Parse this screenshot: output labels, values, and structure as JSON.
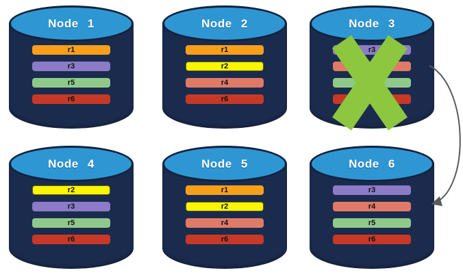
{
  "colors": {
    "background": "#ffffff",
    "cylinder_body": "#1B2B4E",
    "cylinder_top": "#2E97D3",
    "cylinder_outline": "#12233E",
    "title_text": "#ffffff",
    "bar_label_text": "#111111",
    "failure_x": "#8DC63F",
    "arrow": "#595959",
    "replica_palette": {
      "r1": "#F8A01A",
      "r2": "#FAF405",
      "r3": "#8C7BC6",
      "r4": "#DF7A66",
      "r5": "#8FC98A",
      "r6": "#C63926"
    }
  },
  "nodes": [
    {
      "id": "node-1",
      "title": "Node 1",
      "failed": false,
      "replicas": [
        {
          "label": "r1",
          "color": "r1"
        },
        {
          "label": "r3",
          "color": "r3"
        },
        {
          "label": "r5",
          "color": "r5"
        },
        {
          "label": "r6",
          "color": "r6"
        }
      ]
    },
    {
      "id": "node-2",
      "title": "Node 2",
      "failed": false,
      "replicas": [
        {
          "label": "r1",
          "color": "r1"
        },
        {
          "label": "r2",
          "color": "r2"
        },
        {
          "label": "r4",
          "color": "r4"
        },
        {
          "label": "r6",
          "color": "r6"
        }
      ]
    },
    {
      "id": "node-3",
      "title": "Node 3",
      "failed": true,
      "replicas": [
        {
          "label": "r3",
          "color": "r3"
        },
        {
          "label": "",
          "color": "r4"
        },
        {
          "label": "",
          "color": "r5"
        },
        {
          "label": "",
          "color": "r6"
        }
      ]
    },
    {
      "id": "node-4",
      "title": "Node 4",
      "failed": false,
      "replicas": [
        {
          "label": "r2",
          "color": "r2"
        },
        {
          "label": "r3",
          "color": "r3"
        },
        {
          "label": "r5",
          "color": "r5"
        },
        {
          "label": "r6",
          "color": "r6"
        }
      ]
    },
    {
      "id": "node-5",
      "title": "Node 5",
      "failed": false,
      "replicas": [
        {
          "label": "r1",
          "color": "r1"
        },
        {
          "label": "r2",
          "color": "r2"
        },
        {
          "label": "r4",
          "color": "r4"
        },
        {
          "label": "r6",
          "color": "r6"
        }
      ]
    },
    {
      "id": "node-6",
      "title": "Node 6",
      "failed": false,
      "replicas": [
        {
          "label": "r3",
          "color": "r3"
        },
        {
          "label": "r4",
          "color": "r4"
        },
        {
          "label": "r5",
          "color": "r5"
        },
        {
          "label": "r6",
          "color": "r6"
        }
      ]
    }
  ],
  "annotations": {
    "failure_x": {
      "on_node": "Node 3"
    },
    "arrow": {
      "from": "Node 3",
      "to": "Node 6"
    }
  }
}
